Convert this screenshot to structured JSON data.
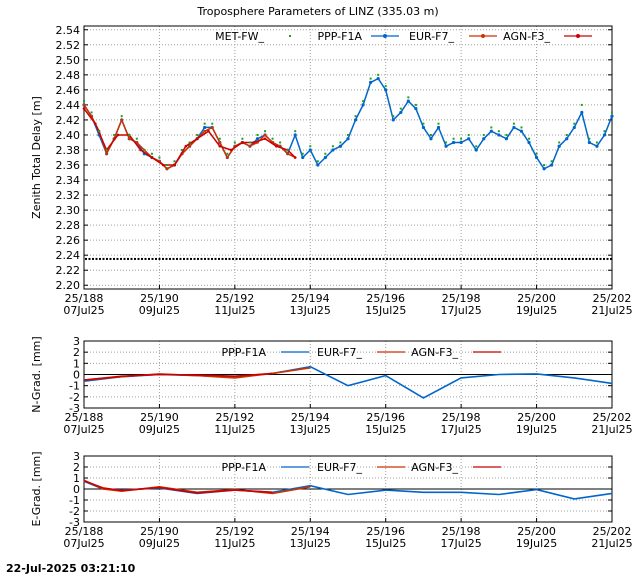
{
  "title": "Troposphere Parameters of LINZ (335.03 m)",
  "timestamp": "22-Jul-2025 03:21:10",
  "colors": {
    "met": "#20a020",
    "ppp": "#0066cc",
    "eur": "#cc3300",
    "agn": "#cc0000",
    "const": "#000000"
  },
  "legend_ztd": [
    "MET-FW_",
    "PPP-F1A",
    "EUR-F7_",
    "AGN-F3_"
  ],
  "legend_grad": [
    "PPP-F1A",
    "EUR-F7_",
    "AGN-F3_"
  ],
  "x_ticks": [
    {
      "x": 188,
      "doy": "25/188",
      "date": "07Jul25"
    },
    {
      "x": 190,
      "doy": "25/190",
      "date": "09Jul25"
    },
    {
      "x": 192,
      "doy": "25/192",
      "date": "11Jul25"
    },
    {
      "x": 194,
      "doy": "25/194",
      "date": "13Jul25"
    },
    {
      "x": 196,
      "doy": "25/196",
      "date": "15Jul25"
    },
    {
      "x": 198,
      "doy": "25/198",
      "date": "17Jul25"
    },
    {
      "x": 200,
      "doy": "25/200",
      "date": "19Jul25"
    },
    {
      "x": 202,
      "doy": "25/202",
      "date": "21Jul25"
    }
  ],
  "chart_data": [
    {
      "type": "scatter",
      "ylabel": "Zenith Total Delay [m]",
      "xlim": [
        188,
        202
      ],
      "ylim": [
        2.195,
        2.545
      ],
      "yticks": [
        2.2,
        2.22,
        2.24,
        2.26,
        2.28,
        2.3,
        2.32,
        2.34,
        2.36,
        2.38,
        2.4,
        2.42,
        2.44,
        2.46,
        2.48,
        2.5,
        2.52,
        2.54
      ],
      "series": [
        {
          "name": "PPP-F1A",
          "x": [
            188.0,
            188.2,
            188.4,
            188.6,
            188.8,
            189.0,
            189.2,
            189.4,
            189.6,
            189.8,
            190.0,
            190.2,
            190.4,
            190.6,
            190.8,
            191.0,
            191.2,
            191.4,
            191.6,
            191.8,
            192.0,
            192.2,
            192.4,
            192.6,
            192.8,
            193.0,
            193.2,
            193.4,
            193.6,
            193.8,
            194.0,
            194.2,
            194.4,
            194.6,
            194.8,
            195.0,
            195.2,
            195.4,
            195.6,
            195.8,
            196.0,
            196.2,
            196.4,
            196.6,
            196.8,
            197.0,
            197.2,
            197.4,
            197.6,
            197.8,
            198.0,
            198.2,
            198.4,
            198.6,
            198.8,
            199.0,
            199.2,
            199.4,
            199.6,
            199.8,
            200.0,
            200.2,
            200.4,
            200.6,
            200.8,
            201.0,
            201.2,
            201.4,
            201.6,
            201.8,
            202.0
          ],
          "y": [
            2.44,
            2.425,
            2.4,
            2.375,
            2.395,
            2.42,
            2.395,
            2.39,
            2.375,
            2.37,
            2.365,
            2.355,
            2.36,
            2.375,
            2.385,
            2.395,
            2.41,
            2.41,
            2.39,
            2.37,
            2.385,
            2.39,
            2.385,
            2.395,
            2.4,
            2.39,
            2.385,
            2.375,
            2.4,
            2.37,
            2.38,
            2.36,
            2.37,
            2.38,
            2.385,
            2.395,
            2.42,
            2.44,
            2.47,
            2.475,
            2.46,
            2.42,
            2.43,
            2.445,
            2.435,
            2.41,
            2.395,
            2.41,
            2.385,
            2.39,
            2.39,
            2.395,
            2.38,
            2.395,
            2.405,
            2.4,
            2.395,
            2.41,
            2.405,
            2.39,
            2.37,
            2.355,
            2.36,
            2.385,
            2.395,
            2.41,
            2.43,
            2.39,
            2.385,
            2.4,
            2.425
          ]
        },
        {
          "name": "EUR-F7_",
          "x": [
            188.0,
            188.2,
            188.4,
            188.6,
            188.8,
            189.0,
            189.2,
            189.4,
            189.6,
            189.8,
            190.0,
            190.2,
            190.4,
            190.6,
            190.8,
            191.0,
            191.2,
            191.4,
            191.6,
            191.8,
            192.0,
            192.2,
            192.4,
            192.6,
            192.8,
            193.0,
            193.2,
            193.4,
            193.6
          ],
          "y": [
            2.44,
            2.425,
            2.405,
            2.375,
            2.395,
            2.42,
            2.395,
            2.39,
            2.38,
            2.37,
            2.365,
            2.355,
            2.36,
            2.375,
            2.385,
            2.395,
            2.405,
            2.41,
            2.39,
            2.37,
            2.385,
            2.39,
            2.385,
            2.39,
            2.4,
            2.39,
            2.385,
            2.375,
            2.37
          ]
        },
        {
          "name": "AGN-F3_",
          "x": [
            188.0,
            188.3,
            188.6,
            188.9,
            189.2,
            189.5,
            189.8,
            190.1,
            190.4,
            190.7,
            191.0,
            191.3,
            191.6,
            191.9,
            192.2,
            192.5,
            192.8,
            193.1,
            193.4,
            193.6
          ],
          "y": [
            2.435,
            2.415,
            2.38,
            2.4,
            2.4,
            2.38,
            2.37,
            2.36,
            2.36,
            2.385,
            2.395,
            2.405,
            2.385,
            2.38,
            2.39,
            2.39,
            2.395,
            2.385,
            2.38,
            2.37
          ]
        },
        {
          "name": "MET-FW_",
          "x": [
            188.0,
            188.2,
            188.4,
            188.6,
            188.8,
            189.0,
            189.2,
            189.4,
            189.6,
            189.8,
            190.0,
            190.2,
            190.4,
            190.6,
            190.8,
            191.0,
            191.2,
            191.4,
            191.6,
            191.8,
            192.0,
            192.2,
            192.4,
            192.6,
            192.8,
            193.0,
            193.2,
            193.4,
            193.6,
            193.8,
            194.0,
            194.2,
            194.4,
            194.6,
            194.8,
            195.0,
            195.2,
            195.4,
            195.6,
            195.8,
            196.0,
            196.2,
            196.4,
            196.6,
            196.8,
            197.0,
            197.2,
            197.4,
            197.6,
            197.8,
            198.0,
            198.2,
            198.4,
            198.6,
            198.8,
            199.0,
            199.2,
            199.4,
            199.6,
            199.8,
            200.0,
            200.2,
            200.4,
            200.6,
            200.8,
            201.0,
            201.2,
            201.4,
            201.6,
            201.8,
            202.0
          ],
          "y": [
            2.445,
            2.43,
            2.405,
            2.38,
            2.4,
            2.425,
            2.4,
            2.395,
            2.38,
            2.375,
            2.37,
            2.36,
            2.365,
            2.38,
            2.39,
            2.4,
            2.415,
            2.415,
            2.395,
            2.375,
            2.39,
            2.395,
            2.39,
            2.4,
            2.405,
            2.395,
            2.39,
            2.38,
            2.405,
            2.375,
            2.385,
            2.365,
            2.375,
            2.385,
            2.39,
            2.4,
            2.425,
            2.445,
            2.475,
            2.48,
            2.465,
            2.425,
            2.435,
            2.45,
            2.44,
            2.415,
            2.4,
            2.415,
            2.39,
            2.395,
            2.395,
            2.4,
            2.385,
            2.4,
            2.41,
            2.405,
            2.4,
            2.415,
            2.41,
            2.395,
            2.375,
            2.36,
            2.365,
            2.39,
            2.4,
            2.415,
            2.44,
            2.395,
            2.39,
            2.405,
            2.43
          ]
        },
        {
          "name": "",
          "x": [
            188,
            202
          ],
          "y": [
            2.235,
            2.235
          ]
        }
      ]
    },
    {
      "type": "line",
      "ylabel": "N-Grad. [mm]",
      "xlim": [
        188,
        202
      ],
      "ylim": [
        -3,
        3
      ],
      "yticks": [
        3,
        2,
        1,
        0,
        -1,
        -2,
        -3
      ],
      "series": [
        {
          "name": "PPP-F1A",
          "x": [
            188,
            189,
            190,
            191,
            192,
            193,
            194,
            195,
            196,
            197,
            198,
            199,
            200,
            201,
            202
          ],
          "y": [
            -0.6,
            -0.2,
            0.0,
            -0.1,
            -0.2,
            0.1,
            0.7,
            -1.0,
            -0.1,
            -2.1,
            -0.3,
            0.0,
            0.05,
            -0.3,
            -0.8
          ]
        },
        {
          "name": "EUR-F7_",
          "x": [
            188,
            189,
            190,
            191,
            192,
            193,
            194
          ],
          "y": [
            -0.5,
            -0.2,
            0.05,
            -0.1,
            -0.3,
            0.1,
            0.6
          ]
        },
        {
          "name": "AGN-F3_",
          "x": [
            188,
            189,
            190,
            191,
            192,
            193
          ],
          "y": [
            -0.5,
            -0.15,
            0.0,
            -0.05,
            -0.15,
            0.1
          ]
        }
      ]
    },
    {
      "type": "line",
      "ylabel": "E-Grad. [mm]",
      "xlim": [
        188,
        202
      ],
      "ylim": [
        -3,
        3
      ],
      "yticks": [
        3,
        2,
        1,
        0,
        -1,
        -2,
        -3
      ],
      "series": [
        {
          "name": "PPP-F1A",
          "x": [
            188,
            188.5,
            189,
            190,
            191,
            192,
            193,
            194,
            195,
            196,
            197,
            198,
            199,
            200,
            201,
            202
          ],
          "y": [
            0.7,
            0.0,
            -0.1,
            0.1,
            -0.4,
            -0.1,
            -0.3,
            0.3,
            -0.5,
            -0.1,
            -0.3,
            -0.3,
            -0.5,
            -0.05,
            -0.9,
            -0.4
          ]
        },
        {
          "name": "EUR-F7_",
          "x": [
            188,
            188.5,
            189,
            190,
            191,
            192,
            193,
            194
          ],
          "y": [
            0.8,
            0.0,
            -0.2,
            0.2,
            -0.3,
            -0.05,
            -0.4,
            0.2
          ]
        },
        {
          "name": "AGN-F3_",
          "x": [
            188,
            188.5,
            189,
            190,
            191,
            192,
            193
          ],
          "y": [
            0.75,
            0.1,
            -0.15,
            0.15,
            -0.35,
            -0.1,
            -0.3
          ]
        }
      ]
    }
  ]
}
